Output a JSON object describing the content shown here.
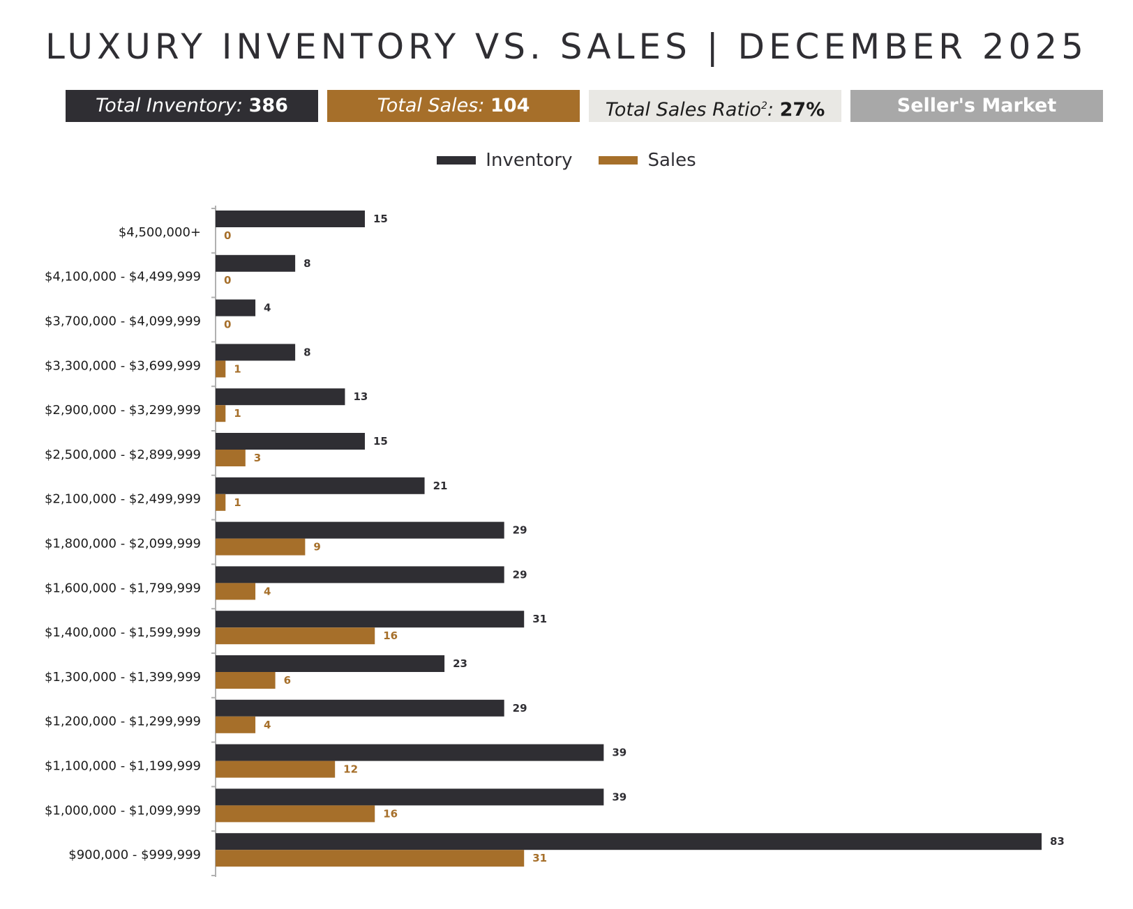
{
  "title": "LUXURY INVENTORY VS. SALES | DECEMBER 2025",
  "stats": {
    "inventory": {
      "label": "Total Inventory:",
      "value": "386"
    },
    "sales": {
      "label": "Total Sales:",
      "value": "104"
    },
    "ratio": {
      "label": "Total Sales Ratio",
      "sup": "2",
      "colon": ":",
      "value": "27%"
    },
    "market": {
      "label": "Seller's Market"
    }
  },
  "legend": {
    "inventory": "Inventory",
    "sales": "Sales"
  },
  "colors": {
    "inventory": "#2f2e33",
    "sales": "#a66f2a",
    "ratio_bg": "#e9e8e4",
    "market_bg": "#a8a8a8"
  },
  "chart_data": {
    "type": "bar",
    "orientation": "horizontal",
    "categories": [
      "$4,500,000+",
      "$4,100,000 - $4,499,999",
      "$3,700,000 - $4,099,999",
      "$3,300,000 - $3,699,999",
      "$2,900,000 - $3,299,999",
      "$2,500,000 - $2,899,999",
      "$2,100,000 - $2,499,999",
      "$1,800,000 - $2,099,999",
      "$1,600,000 - $1,799,999",
      "$1,400,000 - $1,599,999",
      "$1,300,000 - $1,399,999",
      "$1,200,000 - $1,299,999",
      "$1,100,000 - $1,199,999",
      "$1,000,000 - $1,099,999",
      "$900,000 - $999,999"
    ],
    "series": [
      {
        "name": "Inventory",
        "values": [
          15,
          8,
          4,
          8,
          13,
          15,
          21,
          29,
          29,
          31,
          23,
          29,
          39,
          39,
          83
        ]
      },
      {
        "name": "Sales",
        "values": [
          0,
          0,
          0,
          1,
          1,
          3,
          1,
          9,
          4,
          16,
          6,
          4,
          12,
          16,
          31
        ]
      }
    ],
    "xlim": [
      0,
      83
    ],
    "grid": false,
    "legend_position": "top",
    "data_labels": true
  }
}
